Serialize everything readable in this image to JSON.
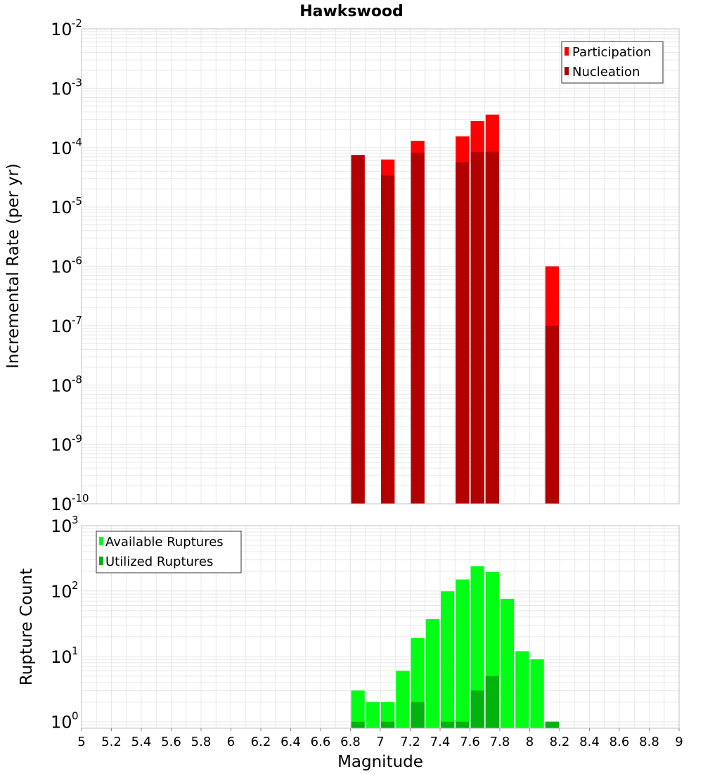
{
  "title": "Hawkswood",
  "x_axis": {
    "label": "Magnitude",
    "range": [
      5,
      9
    ],
    "ticks": [
      "5",
      "5.2",
      "5.4",
      "5.6",
      "5.8",
      "6",
      "6.2",
      "6.4",
      "6.6",
      "6.8",
      "7",
      "7.2",
      "7.4",
      "7.6",
      "7.8",
      "8",
      "8.2",
      "8.4",
      "8.6",
      "8.8",
      "9"
    ]
  },
  "top_panel": {
    "ylabel": "Incremental Rate (per yr)",
    "scale": "log",
    "y_exponent_range": [
      -10,
      -2
    ],
    "y_tick_exponents": [
      "-2",
      "-3",
      "-4",
      "-5",
      "-6",
      "-7",
      "-8",
      "-9",
      "-10"
    ],
    "legend_position": "top-right",
    "legend": [
      "Participation",
      "Nucleation"
    ]
  },
  "bottom_panel": {
    "ylabel": "Rupture Count",
    "scale": "log",
    "y_exponent_range": [
      -0.1,
      3
    ],
    "y_tick_exponents": [
      "3",
      "2",
      "1",
      "0"
    ],
    "legend_position": "top-left",
    "legend": [
      "Available Ruptures",
      "Utilized Ruptures"
    ]
  },
  "colors": {
    "participation": "#ff0000",
    "nucleation": "#b30000",
    "available": "#00ff14",
    "utilized": "#00b30e",
    "grid": "#e8e8e8",
    "frame": "#c0c0c0"
  },
  "chart_data": [
    {
      "type": "bar",
      "title": "Hawkswood",
      "xlabel": "Magnitude",
      "ylabel": "Incremental Rate (per yr)",
      "yscale": "log",
      "xlim": [
        5,
        9
      ],
      "ylim": [
        1e-10,
        0.01
      ],
      "bin_width": 0.1,
      "grid": true,
      "legend_position": "top-right",
      "series": [
        {
          "name": "Participation",
          "x": [
            6.85,
            7.05,
            7.25,
            7.55,
            7.65,
            7.75,
            8.15
          ],
          "values": [
            7.5e-05,
            6.3e-05,
            0.00013,
            0.000155,
            0.00028,
            0.00036,
            1e-06
          ]
        },
        {
          "name": "Nucleation",
          "x": [
            6.85,
            7.05,
            7.25,
            7.55,
            7.65,
            7.75,
            8.15
          ],
          "values": [
            7.5e-05,
            3.4e-05,
            8.2e-05,
            5.7e-05,
            8.4e-05,
            8.5e-05,
            1e-07
          ]
        }
      ]
    },
    {
      "type": "bar",
      "xlabel": "Magnitude",
      "ylabel": "Rupture Count",
      "yscale": "log",
      "xlim": [
        5,
        9
      ],
      "ylim": [
        0.8,
        1000
      ],
      "bin_width": 0.1,
      "grid": true,
      "legend_position": "top-left",
      "series": [
        {
          "name": "Available Ruptures",
          "x": [
            6.85,
            6.95,
            7.05,
            7.15,
            7.25,
            7.35,
            7.45,
            7.55,
            7.65,
            7.75,
            7.85,
            7.95,
            8.05,
            8.15
          ],
          "values": [
            3,
            2,
            2,
            6,
            19,
            37,
            99,
            150,
            240,
            195,
            76,
            12,
            9,
            1
          ]
        },
        {
          "name": "Utilized Ruptures",
          "x": [
            6.85,
            7.05,
            7.25,
            7.45,
            7.55,
            7.65,
            7.75,
            8.15
          ],
          "values": [
            1,
            1,
            2,
            1,
            1,
            3,
            5,
            1
          ]
        }
      ]
    }
  ]
}
